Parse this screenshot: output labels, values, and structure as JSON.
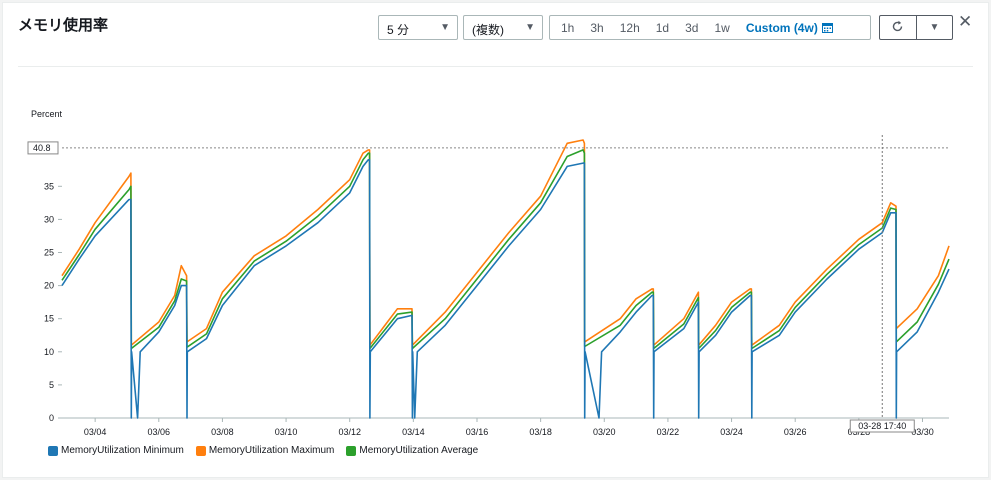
{
  "header": {
    "title": "メモリ使用率",
    "period_select": "5 分",
    "stat_select": "(複数)",
    "time_ranges": [
      "1h",
      "3h",
      "12h",
      "1d",
      "3d",
      "1w"
    ],
    "custom_range": "Custom (4w)",
    "icons": {
      "calendar": "calendar-icon",
      "refresh": "refresh-icon",
      "dropdown": "caret-down-icon",
      "close": "close-icon"
    }
  },
  "colors": {
    "minimum": "#1f77b4",
    "maximum": "#ff7f0e",
    "average": "#2ca02c",
    "active": "#0073bb"
  },
  "chart_data": {
    "type": "line",
    "ylabel": "Percent",
    "ylim": [
      0,
      40
    ],
    "yticks": [
      0,
      5,
      10,
      15,
      20,
      25,
      30,
      35
    ],
    "x_tick_labels": [
      "03/04",
      "03/06",
      "03/08",
      "03/10",
      "03/12",
      "03/14",
      "03/16",
      "03/18",
      "03/20",
      "03/22",
      "03/24",
      "03/26",
      "03/28",
      "03/30"
    ],
    "x_range": [
      "03/02 23:00",
      "03/30 20:00"
    ],
    "threshold_label": "40.8",
    "threshold_value": 40.8,
    "crosshair_label": "03-28 17:40",
    "crosshair_x": "03/28 17:40",
    "legend_position": "bottom-left",
    "grid": false,
    "series": [
      {
        "name": "MemoryUtilization Minimum",
        "color": "#1f77b4",
        "points": [
          [
            "03/02 23:00",
            20
          ],
          [
            "03/03 12:00",
            24
          ],
          [
            "03/04 00:00",
            27.5
          ],
          [
            "03/05 01:30",
            33
          ],
          [
            "03/05 03:00",
            33
          ],
          [
            "03/05 03:15",
            0
          ],
          [
            "03/05 03:30",
            10
          ],
          [
            "03/05 08:00",
            0
          ],
          [
            "03/05 10:00",
            10
          ],
          [
            "03/06 00:00",
            13
          ],
          [
            "03/06 12:00",
            17
          ],
          [
            "03/06 17:00",
            20
          ],
          [
            "03/06 21:00",
            20
          ],
          [
            "03/06 21:15",
            0
          ],
          [
            "03/06 21:30",
            10
          ],
          [
            "03/07 12:00",
            12
          ],
          [
            "03/08 00:00",
            17
          ],
          [
            "03/09 00:00",
            23
          ],
          [
            "03/10 00:00",
            26
          ],
          [
            "03/11 00:00",
            29.5
          ],
          [
            "03/12 00:00",
            34
          ],
          [
            "03/12 10:00",
            38
          ],
          [
            "03/12 14:00",
            39
          ],
          [
            "03/12 15:00",
            39
          ],
          [
            "03/12 15:15",
            0
          ],
          [
            "03/12 15:30",
            10
          ],
          [
            "03/13 12:00",
            15
          ],
          [
            "03/13 23:00",
            15.5
          ],
          [
            "03/13 23:15",
            0
          ],
          [
            "03/13 23:30",
            10
          ],
          [
            "03/14 01:00",
            0
          ],
          [
            "03/14 03:00",
            10
          ],
          [
            "03/15 00:00",
            14
          ],
          [
            "03/16 00:00",
            20
          ],
          [
            "03/17 00:00",
            26
          ],
          [
            "03/18 00:00",
            31.5
          ],
          [
            "03/18 20:00",
            38
          ],
          [
            "03/19 08:00",
            38.5
          ],
          [
            "03/19 09:00",
            38.5
          ],
          [
            "03/19 09:15",
            0
          ],
          [
            "03/19 09:30",
            10
          ],
          [
            "03/19 20:00",
            0
          ],
          [
            "03/19 22:00",
            10
          ],
          [
            "03/20 12:00",
            13
          ],
          [
            "03/21 00:00",
            16
          ],
          [
            "03/21 12:00",
            18.5
          ],
          [
            "03/21 13:00",
            18.5
          ],
          [
            "03/21 13:15",
            0
          ],
          [
            "03/21 13:30",
            10
          ],
          [
            "03/22 12:00",
            13.5
          ],
          [
            "03/22 23:00",
            17.5
          ],
          [
            "03/22 23:15",
            0
          ],
          [
            "03/22 23:30",
            10
          ],
          [
            "03/23 12:00",
            12.5
          ],
          [
            "03/24 00:00",
            16
          ],
          [
            "03/24 14:00",
            18.5
          ],
          [
            "03/24 15:00",
            18.5
          ],
          [
            "03/24 15:15",
            0
          ],
          [
            "03/24 15:30",
            10
          ],
          [
            "03/25 12:00",
            12.5
          ],
          [
            "03/26 00:00",
            16
          ],
          [
            "03/27 00:00",
            21
          ],
          [
            "03/28 00:00",
            25.5
          ],
          [
            "03/28 17:40",
            28
          ],
          [
            "03/29 00:00",
            31
          ],
          [
            "03/29 04:00",
            31
          ],
          [
            "03/29 04:15",
            0
          ],
          [
            "03/29 04:30",
            10
          ],
          [
            "03/29 20:00",
            13
          ],
          [
            "03/30 12:00",
            19
          ],
          [
            "03/30 20:00",
            22.5
          ]
        ]
      },
      {
        "name": "MemoryUtilization Maximum",
        "color": "#ff7f0e",
        "points": [
          [
            "03/02 23:00",
            21.5
          ],
          [
            "03/03 12:00",
            25.5
          ],
          [
            "03/04 00:00",
            29.5
          ],
          [
            "03/05 01:30",
            36.5
          ],
          [
            "03/05 03:00",
            37
          ],
          [
            "03/05 03:15",
            11
          ],
          [
            "03/06 00:00",
            14.5
          ],
          [
            "03/06 12:00",
            18.5
          ],
          [
            "03/06 17:00",
            23
          ],
          [
            "03/06 21:00",
            21.5
          ],
          [
            "03/06 21:15",
            11.5
          ],
          [
            "03/07 12:00",
            13.5
          ],
          [
            "03/08 00:00",
            19
          ],
          [
            "03/09 00:00",
            24.5
          ],
          [
            "03/10 00:00",
            27.5
          ],
          [
            "03/11 00:00",
            31.5
          ],
          [
            "03/12 00:00",
            36
          ],
          [
            "03/12 10:00",
            40
          ],
          [
            "03/12 14:00",
            40.5
          ],
          [
            "03/12 15:00",
            40.5
          ],
          [
            "03/12 15:15",
            11
          ],
          [
            "03/13 12:00",
            16.5
          ],
          [
            "03/13 23:00",
            16.5
          ],
          [
            "03/13 23:15",
            11
          ],
          [
            "03/15 00:00",
            16
          ],
          [
            "03/16 00:00",
            22
          ],
          [
            "03/17 00:00",
            28
          ],
          [
            "03/18 00:00",
            33.5
          ],
          [
            "03/18 20:00",
            41.5
          ],
          [
            "03/19 08:00",
            42
          ],
          [
            "03/19 09:00",
            41.5
          ],
          [
            "03/19 09:15",
            11.5
          ],
          [
            "03/20 12:00",
            15
          ],
          [
            "03/21 00:00",
            18
          ],
          [
            "03/21 12:00",
            19.5
          ],
          [
            "03/21 13:00",
            19.5
          ],
          [
            "03/21 13:15",
            11
          ],
          [
            "03/22 12:00",
            15
          ],
          [
            "03/22 23:00",
            19
          ],
          [
            "03/22 23:15",
            11
          ],
          [
            "03/23 12:00",
            14
          ],
          [
            "03/24 00:00",
            17.5
          ],
          [
            "03/24 14:00",
            19.5
          ],
          [
            "03/24 15:00",
            19.5
          ],
          [
            "03/24 15:15",
            11
          ],
          [
            "03/25 12:00",
            14
          ],
          [
            "03/26 00:00",
            17.5
          ],
          [
            "03/27 00:00",
            22.5
          ],
          [
            "03/28 00:00",
            27
          ],
          [
            "03/28 17:40",
            29.5
          ],
          [
            "03/29 00:00",
            32.5
          ],
          [
            "03/29 04:00",
            32
          ],
          [
            "03/29 04:15",
            13.5
          ],
          [
            "03/29 20:00",
            16.5
          ],
          [
            "03/30 12:00",
            21.5
          ],
          [
            "03/30 20:00",
            26
          ]
        ]
      },
      {
        "name": "MemoryUtilization Average",
        "color": "#2ca02c",
        "points": [
          [
            "03/02 23:00",
            20.8
          ],
          [
            "03/03 12:00",
            24.7
          ],
          [
            "03/04 00:00",
            28.5
          ],
          [
            "03/05 01:30",
            34.5
          ],
          [
            "03/05 03:00",
            35
          ],
          [
            "03/05 03:15",
            10.5
          ],
          [
            "03/06 00:00",
            13.7
          ],
          [
            "03/06 12:00",
            17.7
          ],
          [
            "03/06 17:00",
            21
          ],
          [
            "03/06 21:00",
            20.7
          ],
          [
            "03/06 21:15",
            10.7
          ],
          [
            "03/07 12:00",
            12.7
          ],
          [
            "03/08 00:00",
            18
          ],
          [
            "03/09 00:00",
            23.7
          ],
          [
            "03/10 00:00",
            26.7
          ],
          [
            "03/11 00:00",
            30.5
          ],
          [
            "03/12 00:00",
            35
          ],
          [
            "03/12 10:00",
            39
          ],
          [
            "03/12 14:00",
            40
          ],
          [
            "03/12 15:00",
            40
          ],
          [
            "03/12 15:15",
            10.5
          ],
          [
            "03/13 12:00",
            15.7
          ],
          [
            "03/13 23:00",
            16
          ],
          [
            "03/13 23:15",
            10.5
          ],
          [
            "03/15 00:00",
            15
          ],
          [
            "03/16 00:00",
            21
          ],
          [
            "03/17 00:00",
            27
          ],
          [
            "03/18 00:00",
            32.5
          ],
          [
            "03/18 20:00",
            39.5
          ],
          [
            "03/19 08:00",
            40.5
          ],
          [
            "03/19 09:00",
            40
          ],
          [
            "03/19 09:15",
            10.8
          ],
          [
            "03/20 12:00",
            14
          ],
          [
            "03/21 00:00",
            17
          ],
          [
            "03/21 12:00",
            19
          ],
          [
            "03/21 13:00",
            19
          ],
          [
            "03/21 13:15",
            10.5
          ],
          [
            "03/22 12:00",
            14.2
          ],
          [
            "03/22 23:00",
            18.2
          ],
          [
            "03/22 23:15",
            10.5
          ],
          [
            "03/23 12:00",
            13.2
          ],
          [
            "03/24 00:00",
            16.7
          ],
          [
            "03/24 14:00",
            19
          ],
          [
            "03/24 15:00",
            19
          ],
          [
            "03/24 15:15",
            10.5
          ],
          [
            "03/25 12:00",
            13.2
          ],
          [
            "03/26 00:00",
            16.7
          ],
          [
            "03/27 00:00",
            21.7
          ],
          [
            "03/28 00:00",
            26.2
          ],
          [
            "03/28 17:40",
            28.7
          ],
          [
            "03/29 00:00",
            31.7
          ],
          [
            "03/29 04:00",
            31.5
          ],
          [
            "03/29 04:15",
            11.5
          ],
          [
            "03/29 20:00",
            14.5
          ],
          [
            "03/30 12:00",
            20.2
          ],
          [
            "03/30 20:00",
            24
          ]
        ]
      }
    ]
  }
}
